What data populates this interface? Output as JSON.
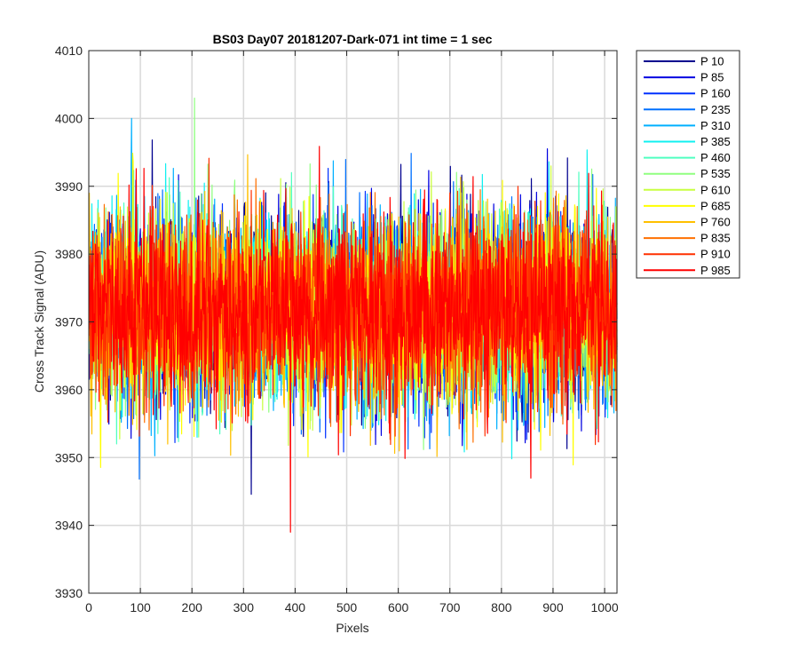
{
  "chart_data": {
    "type": "line",
    "title": "BS03 Day07 20181207-Dark-071 int time = 1 sec",
    "xlabel": "Pixels",
    "ylabel": "Cross Track Signal (ADU)",
    "xlim": [
      0,
      1024
    ],
    "ylim": [
      3930,
      4010
    ],
    "xticks": [
      0,
      100,
      200,
      300,
      400,
      500,
      600,
      700,
      800,
      900,
      1000
    ],
    "yticks": [
      3930,
      3940,
      3950,
      3960,
      3970,
      3980,
      3990,
      4000,
      4010
    ],
    "grid": true,
    "legend_position": "outside-right",
    "n_points": 1024,
    "series_mean_approx": 3972,
    "notable_points": [
      {
        "x": 82,
        "y": 4000
      },
      {
        "x": 204,
        "y": 4003
      },
      {
        "x": 390,
        "y": 3939
      }
    ],
    "series": [
      {
        "name": "P 10",
        "color": "#00008f"
      },
      {
        "name": "P 85",
        "color": "#0000e0"
      },
      {
        "name": "P 160",
        "color": "#0030ff"
      },
      {
        "name": "P 235",
        "color": "#0070ff"
      },
      {
        "name": "P 310",
        "color": "#00b0ff"
      },
      {
        "name": "P 385",
        "color": "#10f0f0"
      },
      {
        "name": "P 460",
        "color": "#50ffc0"
      },
      {
        "name": "P 535",
        "color": "#90ff80"
      },
      {
        "name": "P 610",
        "color": "#c8ff40"
      },
      {
        "name": "P 685",
        "color": "#ffff00"
      },
      {
        "name": "P 760",
        "color": "#ffc000"
      },
      {
        "name": "P 835",
        "color": "#ff7000"
      },
      {
        "name": "P 910",
        "color": "#ff3000"
      },
      {
        "name": "P 985",
        "color": "#ff0000"
      }
    ]
  }
}
